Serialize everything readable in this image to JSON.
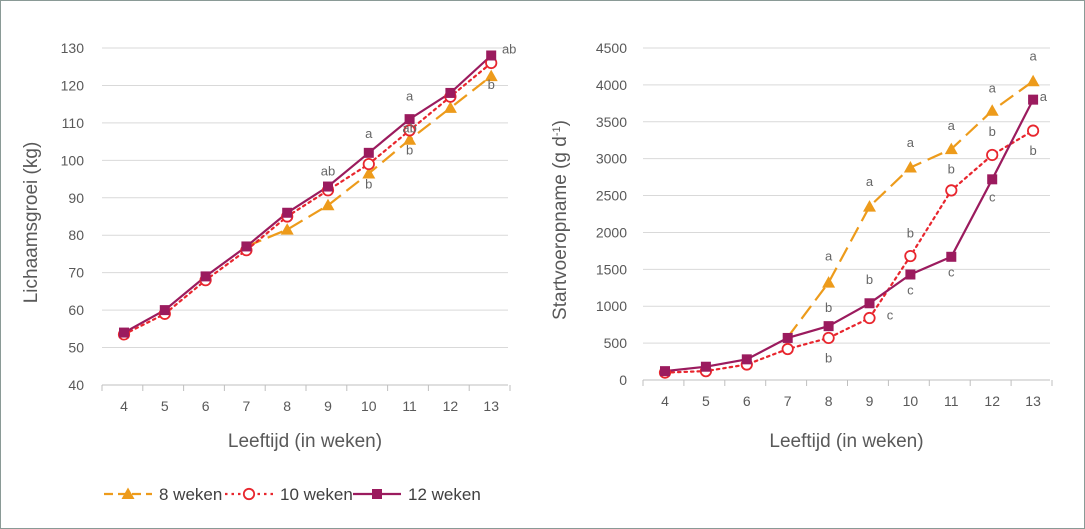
{
  "colors": {
    "orange": "#ED9B1B",
    "red": "#E8262E",
    "purple": "#9B1B5E",
    "grid": "#D9D9D9",
    "axis": "#BFBFBF"
  },
  "legend": [
    {
      "name": "8 weken",
      "color": "#ED9B1B",
      "marker": "triangle",
      "dash": "long-dash"
    },
    {
      "name": "10 weken",
      "color": "#E8262E",
      "marker": "open-circle",
      "dash": "dotted"
    },
    {
      "name": "12 weken",
      "color": "#9B1B5E",
      "marker": "square",
      "dash": "solid"
    }
  ],
  "chart_data": [
    {
      "type": "line",
      "title": "",
      "xlabel": "Leeftijd (in weken)",
      "ylabel": "Lichaamsgroei (kg)",
      "x": [
        4,
        5,
        6,
        7,
        8,
        9,
        10,
        11,
        12,
        13
      ],
      "ylim": [
        40,
        130
      ],
      "yticks": [
        40,
        50,
        60,
        70,
        80,
        90,
        100,
        110,
        120,
        130
      ],
      "grid": true,
      "series": [
        {
          "name": "8 weken",
          "values": [
            null,
            null,
            null,
            77,
            81.5,
            88,
            96.5,
            105.5,
            114,
            122.5
          ]
        },
        {
          "name": "10 weken",
          "values": [
            53.5,
            59,
            68,
            76,
            85,
            92,
            99,
            108,
            117,
            126
          ]
        },
        {
          "name": "12 weken",
          "values": [
            54,
            60,
            69,
            77,
            86,
            93,
            102,
            111,
            118,
            128
          ]
        }
      ],
      "annotations": [
        {
          "x": 9,
          "y": 96,
          "text": "ab",
          "series": "10 weken"
        },
        {
          "x": 10,
          "y": 106,
          "text": "a",
          "series": "12 weken"
        },
        {
          "x": 10,
          "y": 92.5,
          "text": "b",
          "series": "8 weken"
        },
        {
          "x": 11,
          "y": 116,
          "text": "a",
          "series": "12 weken"
        },
        {
          "x": 11,
          "y": 107.5,
          "text": "ab",
          "series": "10 weken"
        },
        {
          "x": 11,
          "y": 101.5,
          "text": "b",
          "series": "8 weken"
        },
        {
          "x": 13,
          "y": 128.5,
          "text": "ab",
          "series": "10 weken"
        },
        {
          "x": 13,
          "y": 119,
          "text": "b",
          "series": "8 weken"
        }
      ]
    },
    {
      "type": "line",
      "title": "",
      "xlabel": "Leeftijd (in weken)",
      "ylabel": "Startvoeropname (g d",
      "ylabel_sup": "-1",
      "ylabel_end": ")",
      "x": [
        4,
        5,
        6,
        7,
        8,
        9,
        10,
        11,
        12,
        13
      ],
      "ylim": [
        0,
        4500
      ],
      "yticks": [
        0,
        500,
        1000,
        1500,
        2000,
        2500,
        3000,
        3500,
        4000,
        4500
      ],
      "grid": true,
      "series": [
        {
          "name": "8 weken",
          "values": [
            null,
            null,
            null,
            580,
            1320,
            2350,
            2880,
            3130,
            3650,
            4050
          ]
        },
        {
          "name": "10 weken",
          "values": [
            100,
            120,
            210,
            420,
            570,
            840,
            1680,
            2570,
            3050,
            3380
          ]
        },
        {
          "name": "12 weken",
          "values": [
            120,
            180,
            280,
            570,
            730,
            1040,
            1430,
            1670,
            2720,
            3800
          ]
        }
      ],
      "annotations": [
        {
          "x": 8,
          "y": 1620,
          "text": "a"
        },
        {
          "x": 8,
          "y": 920,
          "text": "b"
        },
        {
          "x": 8,
          "y": 240,
          "text": "b"
        },
        {
          "x": 9,
          "y": 2630,
          "text": "a"
        },
        {
          "x": 9,
          "y": 1300,
          "text": "b"
        },
        {
          "x": 10,
          "y": 3160,
          "text": "a"
        },
        {
          "x": 10,
          "y": 1930,
          "text": "b"
        },
        {
          "x": 10,
          "y": 1160,
          "text": "c"
        },
        {
          "x": 9.5,
          "y": 820,
          "text": "c"
        },
        {
          "x": 11,
          "y": 3390,
          "text": "a"
        },
        {
          "x": 11,
          "y": 2800,
          "text": "b"
        },
        {
          "x": 11,
          "y": 1400,
          "text": "c"
        },
        {
          "x": 12,
          "y": 3900,
          "text": "a"
        },
        {
          "x": 12,
          "y": 3310,
          "text": "b"
        },
        {
          "x": 12,
          "y": 2420,
          "text": "c"
        },
        {
          "x": 13,
          "y": 4330,
          "text": "a"
        },
        {
          "x": 13.25,
          "y": 3780,
          "text": "a"
        },
        {
          "x": 13,
          "y": 3050,
          "text": "b"
        }
      ]
    }
  ]
}
